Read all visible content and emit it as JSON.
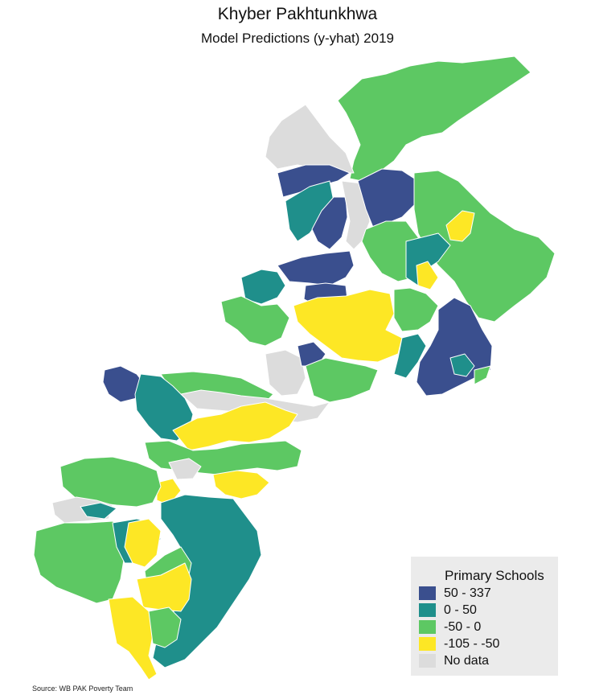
{
  "title": "Khyber Pakhtunkhwa",
  "subtitle": "Model Predictions (y-yhat) 2019",
  "colors": {
    "dark_blue": "#3a4f8e",
    "teal": "#1f8f8b",
    "green": "#5dc863",
    "yellow": "#fde725",
    "no_data": "#dcdcdc",
    "border": "#ffffff"
  },
  "legend": {
    "title": "Primary Schools",
    "items": [
      {
        "label": "50 - 337",
        "color": "#3a4f8e"
      },
      {
        "label": "0 - 50",
        "color": "#1f8f8b"
      },
      {
        "label": "-50 - 0",
        "color": "#5dc863"
      },
      {
        "label": "-105 - -50",
        "color": "#fde725"
      },
      {
        "label": "No data",
        "color": "#dcdcdc"
      }
    ]
  },
  "source": "Source: WB PAK Poverty Team"
}
